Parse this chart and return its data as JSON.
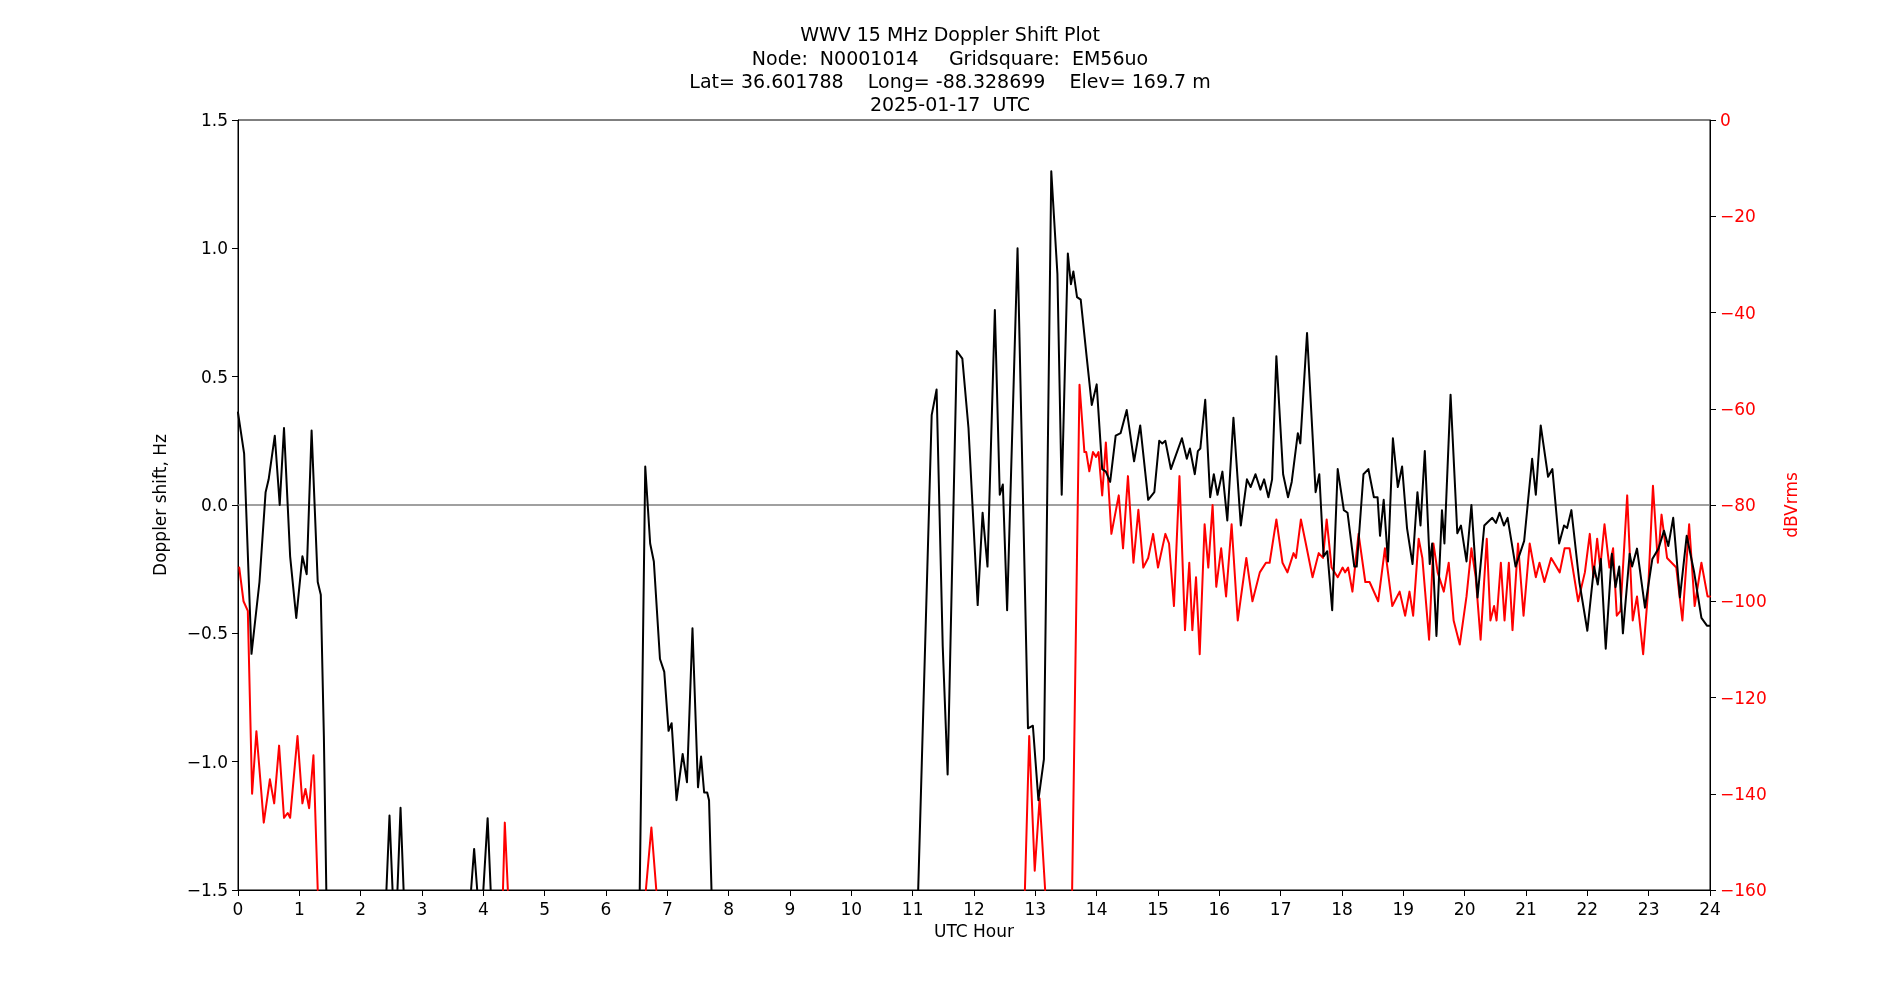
{
  "chart_data": {
    "type": "line",
    "title": "WWV 15 MHz Doppler Shift Plot",
    "subtitle": "Node:  N0001014     Gridsquare:  EM56uo\nLat= 36.601788    Long= -88.328699    Elev= 169.7 m\n2025-01-17  UTC",
    "xlabel": "UTC Hour",
    "ylabel": "Doppler shift, Hz",
    "y2label": "dBVrms",
    "series": [
      {
        "color": "#000000",
        "x": [
          0,
          0.1,
          0.22,
          0.35,
          0.45,
          0.5,
          0.6,
          0.68,
          0.75,
          0.85,
          0.95,
          1.05,
          1.12,
          1.2,
          1.3,
          1.35,
          1.4,
          1.44,
          1.9,
          2.42,
          2.47,
          2.52,
          2.56,
          2.6,
          2.65,
          2.7,
          3.2,
          3.8,
          3.85,
          3.9,
          3.95,
          4.0,
          4.07,
          4.12,
          5.5,
          6.55,
          6.64,
          6.72,
          6.78,
          6.88,
          6.95,
          7.02,
          7.07,
          7.15,
          7.25,
          7.32,
          7.41,
          7.5,
          7.55,
          7.6,
          7.65,
          7.68,
          7.72,
          9.5,
          11.09,
          11.31,
          11.39,
          11.49,
          11.57,
          11.72,
          11.81,
          11.91,
          12.06,
          12.14,
          12.22,
          12.34,
          12.42,
          12.47,
          12.54,
          12.71,
          12.88,
          12.96,
          13.05,
          13.14,
          13.26,
          13.36,
          13.43,
          13.53,
          13.58,
          13.62,
          13.68,
          13.74,
          13.84,
          13.92,
          14.0,
          14.09,
          14.15,
          14.22,
          14.31,
          14.39,
          14.49,
          14.61,
          14.71,
          14.84,
          14.94,
          15.02,
          15.07,
          15.12,
          15.21,
          15.39,
          15.47,
          15.52,
          15.6,
          15.65,
          15.69,
          15.77,
          15.85,
          15.91,
          15.97,
          16.05,
          16.13,
          16.23,
          16.35,
          16.45,
          16.51,
          16.59,
          16.67,
          16.73,
          16.8,
          16.86,
          16.93,
          17.04,
          17.12,
          17.18,
          17.28,
          17.32,
          17.43,
          17.57,
          17.63,
          17.7,
          17.76,
          17.84,
          17.93,
          18.03,
          18.09,
          18.2,
          18.24,
          18.35,
          18.43,
          18.52,
          18.58,
          18.62,
          18.68,
          18.75,
          18.83,
          18.91,
          18.98,
          19.06,
          19.15,
          19.23,
          19.28,
          19.35,
          19.43,
          19.47,
          19.54,
          19.63,
          19.67,
          19.77,
          19.88,
          19.94,
          20.03,
          20.11,
          20.21,
          20.32,
          20.45,
          20.51,
          20.57,
          20.64,
          20.7,
          20.83,
          20.97,
          21.1,
          21.16,
          21.24,
          21.36,
          21.43,
          21.54,
          21.62,
          21.67,
          21.74,
          21.87,
          22.0,
          22.11,
          22.17,
          22.22,
          22.3,
          22.4,
          22.46,
          22.52,
          22.58,
          22.69,
          22.73,
          22.81,
          22.94,
          23.06,
          23.16,
          23.25,
          23.32,
          23.4,
          23.51,
          23.62,
          23.74,
          23.86,
          23.95,
          24
        ],
        "values": [
          0.36,
          0.2,
          -0.58,
          -0.3,
          0.05,
          0.1,
          0.27,
          0.0,
          0.3,
          -0.2,
          -0.44,
          -0.2,
          -0.27,
          0.29,
          -0.3,
          -0.35,
          -0.9,
          -1.5,
          null,
          -1.5,
          -1.21,
          -1.5,
          null,
          -1.5,
          -1.18,
          -1.5,
          null,
          -1.5,
          -1.34,
          -1.5,
          null,
          -1.5,
          -1.22,
          -1.5,
          null,
          -1.5,
          0.15,
          -0.15,
          -0.22,
          -0.6,
          -0.65,
          -0.88,
          -0.85,
          -1.15,
          -0.97,
          -1.08,
          -0.48,
          -1.1,
          -0.98,
          -1.12,
          -1.12,
          -1.15,
          -1.5,
          null,
          -1.5,
          0.35,
          0.45,
          -0.55,
          -1.05,
          0.6,
          0.57,
          0.3,
          -0.39,
          -0.03,
          -0.24,
          0.76,
          0.04,
          0.08,
          -0.41,
          1.0,
          -0.87,
          -0.86,
          -1.15,
          -0.99,
          1.3,
          0.9,
          0.04,
          0.98,
          0.86,
          0.91,
          0.81,
          0.8,
          0.57,
          0.39,
          0.47,
          0.14,
          0.13,
          0.09,
          0.27,
          0.28,
          0.37,
          0.17,
          0.31,
          0.02,
          0.05,
          0.25,
          0.24,
          0.25,
          0.14,
          0.26,
          0.18,
          0.22,
          0.12,
          0.21,
          0.22,
          0.41,
          0.03,
          0.12,
          0.04,
          0.13,
          -0.06,
          0.34,
          -0.08,
          0.1,
          0.07,
          0.12,
          0.06,
          0.1,
          0.03,
          0.1,
          0.58,
          0.12,
          0.03,
          0.09,
          0.28,
          0.24,
          0.67,
          0.05,
          0.12,
          -0.2,
          -0.18,
          -0.41,
          0.14,
          -0.02,
          -0.03,
          -0.24,
          -0.24,
          0.12,
          0.14,
          0.03,
          0.03,
          -0.12,
          0.02,
          -0.22,
          0.26,
          0.07,
          0.15,
          -0.09,
          -0.23,
          0.05,
          -0.08,
          0.21,
          -0.23,
          -0.15,
          -0.51,
          -0.02,
          -0.15,
          0.43,
          -0.11,
          -0.08,
          -0.22,
          0.0,
          -0.36,
          -0.08,
          -0.05,
          -0.07,
          -0.03,
          -0.08,
          -0.05,
          -0.24,
          -0.14,
          0.18,
          0.04,
          0.31,
          0.11,
          0.14,
          -0.15,
          -0.08,
          -0.09,
          -0.02,
          -0.3,
          -0.49,
          -0.24,
          -0.31,
          -0.21,
          -0.56,
          -0.19,
          -0.32,
          -0.24,
          -0.5,
          -0.19,
          -0.24,
          -0.17,
          -0.4,
          -0.21,
          -0.17,
          -0.1,
          -0.16,
          -0.05,
          -0.36,
          -0.12,
          -0.26,
          -0.44,
          -0.47,
          -0.47
        ]
      },
      {
        "color": "#ff0000",
        "axis": "y2",
        "x": [
          0.02,
          0.09,
          0.16,
          0.23,
          0.3,
          0.42,
          0.52,
          0.59,
          0.67,
          0.75,
          0.81,
          0.85,
          0.97,
          1.05,
          1.1,
          1.16,
          1.23,
          1.3,
          2.8,
          4.32,
          4.35,
          4.4,
          5.5,
          6.65,
          6.74,
          6.82,
          9.5,
          12.83,
          12.9,
          12.99,
          13.07,
          13.16,
          13.4,
          13.6,
          13.72,
          13.8,
          13.83,
          13.88,
          13.94,
          13.99,
          14.03,
          14.09,
          14.15,
          14.24,
          14.36,
          14.43,
          14.51,
          14.6,
          14.68,
          14.76,
          14.84,
          14.92,
          15.0,
          15.12,
          15.18,
          15.26,
          15.35,
          15.44,
          15.51,
          15.56,
          15.62,
          15.68,
          15.76,
          15.82,
          15.89,
          15.95,
          16.03,
          16.11,
          16.2,
          16.3,
          16.44,
          16.54,
          16.66,
          16.76,
          16.82,
          16.93,
          17.03,
          17.11,
          17.21,
          17.25,
          17.33,
          17.41,
          17.52,
          17.62,
          17.69,
          17.75,
          17.83,
          17.93,
          18.01,
          18.05,
          18.1,
          18.17,
          18.27,
          18.38,
          18.45,
          18.59,
          18.7,
          18.82,
          18.94,
          19.03,
          19.1,
          19.16,
          19.25,
          19.31,
          19.42,
          19.49,
          19.56,
          19.66,
          19.74,
          19.82,
          19.92,
          20.03,
          20.11,
          20.18,
          20.26,
          20.36,
          20.42,
          20.48,
          20.52,
          20.59,
          20.65,
          20.72,
          20.78,
          20.87,
          20.96,
          21.06,
          21.16,
          21.22,
          21.3,
          21.41,
          21.55,
          21.63,
          21.71,
          21.85,
          21.96,
          22.04,
          22.1,
          22.16,
          22.21,
          22.28,
          22.36,
          22.42,
          22.48,
          22.54,
          22.65,
          22.74,
          22.81,
          22.91,
          22.99,
          23.07,
          23.15,
          23.21,
          23.3,
          23.45,
          23.55,
          23.66,
          23.75,
          23.86,
          23.96,
          24
        ],
        "values": [
          -93,
          -100,
          -102,
          -140,
          -127,
          -146,
          -137,
          -142,
          -130,
          -145,
          -144,
          -145,
          -128,
          -142,
          -139,
          -143,
          -132,
          -160,
          null,
          -160,
          -146,
          -160,
          null,
          -160,
          -147,
          -160,
          null,
          -160,
          -128,
          -156,
          -141,
          -160,
          null,
          -160,
          -55,
          -69,
          -69,
          -73,
          -69,
          -70,
          -69,
          -78,
          -67,
          -86,
          -78,
          -89,
          -74,
          -92,
          -81,
          -93,
          -91,
          -86,
          -93,
          -86,
          -88,
          -101,
          -74,
          -106,
          -92,
          -106,
          -95,
          -111,
          -84,
          -93,
          -80,
          -97,
          -89,
          -99,
          -84,
          -104,
          -91,
          -100,
          -94,
          -92,
          -92,
          -83,
          -92,
          -94,
          -90,
          -91,
          -83,
          -88,
          -95,
          -90,
          -91,
          -83,
          -93,
          -95,
          -93,
          -94,
          -93,
          -98,
          -86,
          -96,
          -96,
          -100,
          -89,
          -101,
          -98,
          -103,
          -98,
          -103,
          -87,
          -91,
          -108,
          -88,
          -94,
          -98,
          -92,
          -104,
          -109,
          -99,
          -89,
          -95,
          -108,
          -87,
          -104,
          -101,
          -104,
          -92,
          -104,
          -92,
          -106,
          -88,
          -103,
          -88,
          -95,
          -92,
          -96,
          -91,
          -94,
          -89,
          -89,
          -100,
          -94,
          -86,
          -95,
          -87,
          -93,
          -84,
          -93,
          -89,
          -103,
          -102,
          -78,
          -104,
          -99,
          -111,
          -98,
          -76,
          -92,
          -82,
          -91,
          -93,
          -104,
          -84,
          -101,
          -92,
          -99,
          -99
        ]
      }
    ],
    "xlim": [
      0,
      24
    ],
    "xticks": [
      0,
      1,
      2,
      3,
      4,
      5,
      6,
      7,
      8,
      9,
      10,
      11,
      12,
      13,
      14,
      15,
      16,
      17,
      18,
      19,
      20,
      21,
      22,
      23,
      24
    ],
    "ylim": [
      -1.5,
      1.5
    ],
    "yticks": [
      -1.5,
      {
        "value": -1,
        "label": "−1.0"
      },
      -0.5,
      {
        "value": 0,
        "label": "0.0"
      },
      0.5,
      {
        "value": 1,
        "label": "1.0"
      },
      1.5
    ],
    "y2lim": [
      -160,
      0
    ],
    "y2ticks": [
      -160,
      -140,
      -120,
      -100,
      -80,
      -60,
      -40,
      -20,
      0
    ],
    "ref_lines": [
      {
        "axis": "y",
        "value": 0,
        "color": "#808080"
      }
    ],
    "grid": false,
    "marker": "none",
    "line_style": "solid"
  }
}
